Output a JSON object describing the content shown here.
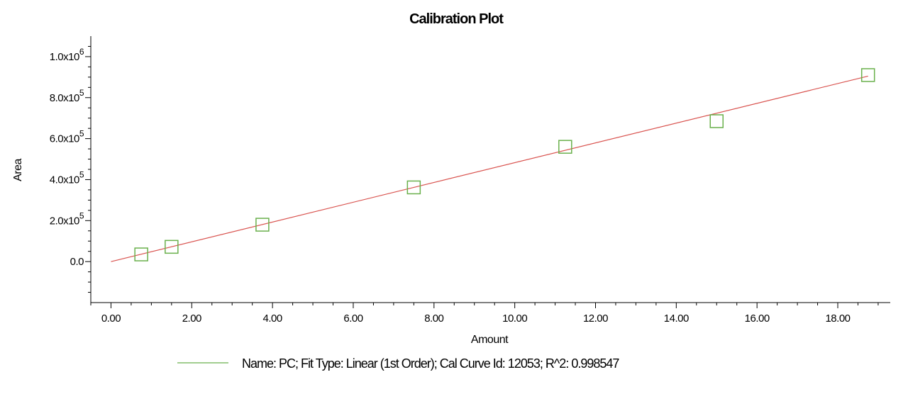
{
  "chart_data": {
    "type": "scatter",
    "title": "Calibration Plot",
    "xlabel": "Amount",
    "ylabel": "Area",
    "xlim": [
      -0.5,
      19.3
    ],
    "ylim": [
      -200000,
      1100000
    ],
    "x_ticks": [
      0,
      2,
      4,
      6,
      8,
      10,
      12,
      14,
      16,
      18
    ],
    "x_tick_labels": [
      "0.00",
      "2.00",
      "4.00",
      "6.00",
      "8.00",
      "10.00",
      "12.00",
      "14.00",
      "16.00",
      "18.00"
    ],
    "y_ticks": [
      {
        "value": 0,
        "mantissa": "0.0",
        "exponent": ""
      },
      {
        "value": 200000,
        "mantissa": "2.0x10",
        "exponent": "5"
      },
      {
        "value": 400000,
        "mantissa": "4.0x10",
        "exponent": "5"
      },
      {
        "value": 600000,
        "mantissa": "6.0x10",
        "exponent": "5"
      },
      {
        "value": 800000,
        "mantissa": "8.0x10",
        "exponent": "5"
      },
      {
        "value": 1000000,
        "mantissa": "1.0x10",
        "exponent": "6"
      }
    ],
    "points": {
      "x": [
        0.75,
        1.5,
        3.75,
        7.5,
        11.25,
        15.0,
        18.75
      ],
      "y": [
        35000,
        72000,
        180000,
        362000,
        560000,
        685000,
        910000
      ]
    },
    "fit_line": {
      "x": [
        0,
        18.75
      ],
      "y": [
        0,
        905000
      ]
    },
    "grid": false,
    "legend": {
      "placement": "bottom",
      "text": "Name: PC;  Fit Type: Linear (1st Order);  Cal Curve Id: 12053;  R^2: 0.998547"
    },
    "colors": {
      "points": "#6ab04c",
      "fit_line": "#d9534f",
      "legend_line": "#6ab04c",
      "axes": "#000000"
    }
  }
}
